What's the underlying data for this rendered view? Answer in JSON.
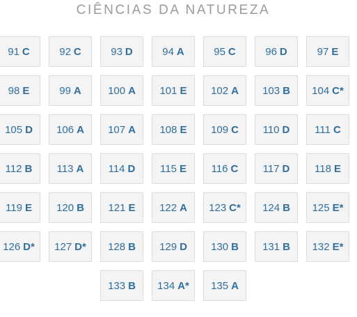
{
  "title": "CIÊNCIAS DA NATUREZA",
  "rows": [
    [
      {
        "num": "91",
        "ans": "C"
      },
      {
        "num": "92",
        "ans": "C"
      },
      {
        "num": "93",
        "ans": "D"
      },
      {
        "num": "94",
        "ans": "A"
      },
      {
        "num": "95",
        "ans": "C"
      },
      {
        "num": "96",
        "ans": "D"
      },
      {
        "num": "97",
        "ans": "E"
      }
    ],
    [
      {
        "num": "98",
        "ans": "E"
      },
      {
        "num": "99",
        "ans": "A"
      },
      {
        "num": "100",
        "ans": "A"
      },
      {
        "num": "101",
        "ans": "E"
      },
      {
        "num": "102",
        "ans": "A"
      },
      {
        "num": "103",
        "ans": "B"
      },
      {
        "num": "104",
        "ans": "C*"
      }
    ],
    [
      {
        "num": "105",
        "ans": "D"
      },
      {
        "num": "106",
        "ans": "A"
      },
      {
        "num": "107",
        "ans": "A"
      },
      {
        "num": "108",
        "ans": "E"
      },
      {
        "num": "109",
        "ans": "C"
      },
      {
        "num": "110",
        "ans": "D"
      },
      {
        "num": "111",
        "ans": "C"
      }
    ],
    [
      {
        "num": "112",
        "ans": "B"
      },
      {
        "num": "113",
        "ans": "A"
      },
      {
        "num": "114",
        "ans": "D"
      },
      {
        "num": "115",
        "ans": "E"
      },
      {
        "num": "116",
        "ans": "C"
      },
      {
        "num": "117",
        "ans": "D"
      },
      {
        "num": "118",
        "ans": "E"
      }
    ],
    [
      {
        "num": "119",
        "ans": "E"
      },
      {
        "num": "120",
        "ans": "B"
      },
      {
        "num": "121",
        "ans": "E"
      },
      {
        "num": "122",
        "ans": "A"
      },
      {
        "num": "123",
        "ans": "C*"
      },
      {
        "num": "124",
        "ans": "B"
      },
      {
        "num": "125",
        "ans": "E*"
      }
    ],
    [
      {
        "num": "126",
        "ans": "D*"
      },
      {
        "num": "127",
        "ans": "D*"
      },
      {
        "num": "128",
        "ans": "B"
      },
      {
        "num": "129",
        "ans": "D"
      },
      {
        "num": "130",
        "ans": "B"
      },
      {
        "num": "131",
        "ans": "B"
      },
      {
        "num": "132",
        "ans": "E*"
      }
    ],
    [
      {
        "num": "133",
        "ans": "B"
      },
      {
        "num": "134",
        "ans": "A*"
      },
      {
        "num": "135",
        "ans": "A"
      }
    ]
  ]
}
